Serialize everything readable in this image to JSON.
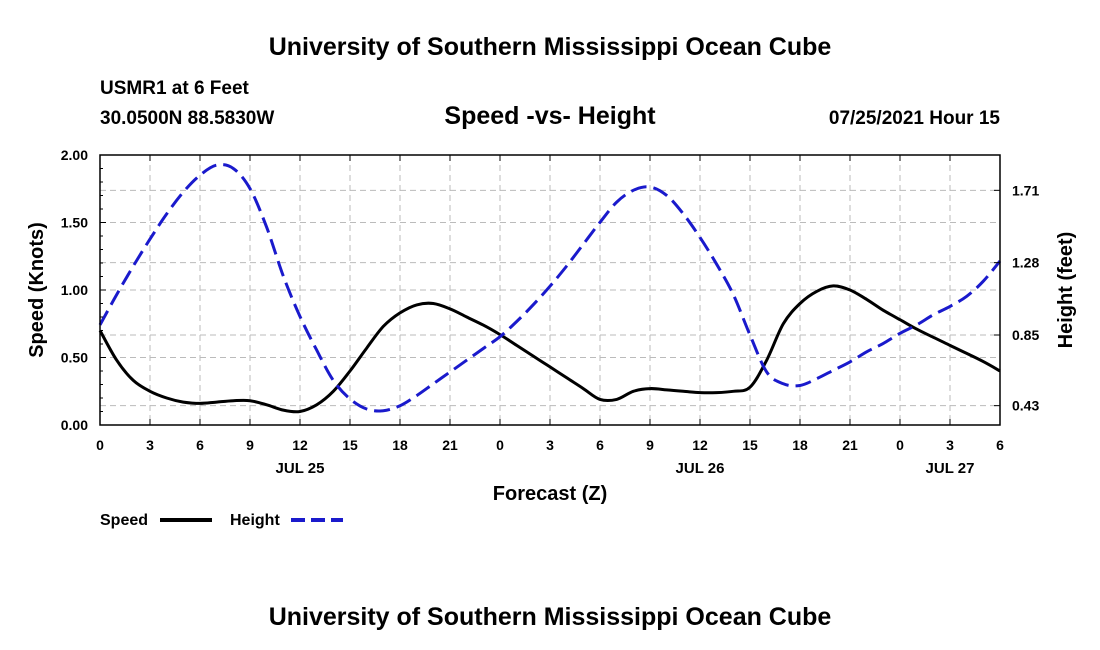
{
  "header": {
    "title": "University of Southern Mississippi Ocean Cube",
    "station": "USMR1 at 6 Feet",
    "coords": "30.0500N  88.5830W",
    "chart_title": "Speed -vs- Height",
    "date": "07/25/2021 Hour 15"
  },
  "footer": {
    "title": "University of Southern Mississippi Ocean Cube"
  },
  "legend": {
    "speed": "Speed",
    "height": "Height"
  },
  "colors": {
    "speed": "#000000",
    "height": "#1a1acc",
    "grid": "#bbbbbb"
  },
  "chart_data": {
    "type": "line",
    "title": "Speed -vs- Height",
    "xlabel": "Forecast (Z)",
    "ylabel_left": "Speed (Knots)",
    "ylabel_right": "Height (feet)",
    "x_range": [
      0,
      54
    ],
    "x_ticks": [
      {
        "x": 0,
        "label": "0"
      },
      {
        "x": 3,
        "label": "3"
      },
      {
        "x": 6,
        "label": "6"
      },
      {
        "x": 9,
        "label": "9"
      },
      {
        "x": 12,
        "label": "12"
      },
      {
        "x": 15,
        "label": "15"
      },
      {
        "x": 18,
        "label": "18"
      },
      {
        "x": 21,
        "label": "21"
      },
      {
        "x": 24,
        "label": "0"
      },
      {
        "x": 27,
        "label": "3"
      },
      {
        "x": 30,
        "label": "6"
      },
      {
        "x": 33,
        "label": "9"
      },
      {
        "x": 36,
        "label": "12"
      },
      {
        "x": 39,
        "label": "15"
      },
      {
        "x": 42,
        "label": "18"
      },
      {
        "x": 45,
        "label": "21"
      },
      {
        "x": 48,
        "label": "0"
      },
      {
        "x": 51,
        "label": "3"
      },
      {
        "x": 54,
        "label": "6"
      }
    ],
    "date_labels": [
      {
        "x": 12,
        "label": "JUL 25"
      },
      {
        "x": 36,
        "label": "JUL 26"
      },
      {
        "x": 51,
        "label": "JUL 27"
      }
    ],
    "y_left_range": [
      0,
      2
    ],
    "y_left_ticks": [
      "0.00",
      "0.50",
      "1.00",
      "1.50",
      "2.00"
    ],
    "y_right_range": [
      0.315,
      1.92
    ],
    "y_right_ticks": [
      "0.43",
      "0.85",
      "1.28",
      "1.71"
    ],
    "grid": true,
    "legend_position": "bottom-left",
    "series": [
      {
        "name": "Speed",
        "axis": "left",
        "style": "solid",
        "x": [
          0,
          1,
          2,
          3,
          4,
          5,
          6,
          7,
          8,
          9,
          10,
          11,
          12,
          13,
          14,
          15,
          16,
          17,
          18,
          19,
          20,
          21,
          22,
          23,
          24,
          25,
          26,
          27,
          28,
          29,
          30,
          31,
          32,
          33,
          34,
          35,
          36,
          37,
          38,
          39,
          40,
          41,
          42,
          43,
          44,
          45,
          46,
          47,
          48,
          49,
          50,
          51,
          52,
          53,
          54
        ],
        "values": [
          0.7,
          0.48,
          0.33,
          0.25,
          0.2,
          0.17,
          0.16,
          0.17,
          0.18,
          0.18,
          0.15,
          0.11,
          0.1,
          0.15,
          0.25,
          0.4,
          0.57,
          0.73,
          0.83,
          0.89,
          0.9,
          0.86,
          0.8,
          0.74,
          0.67,
          0.59,
          0.51,
          0.43,
          0.35,
          0.27,
          0.19,
          0.19,
          0.25,
          0.27,
          0.26,
          0.25,
          0.24,
          0.24,
          0.25,
          0.28,
          0.48,
          0.75,
          0.9,
          0.99,
          1.03,
          1.0,
          0.93,
          0.85,
          0.78,
          0.71,
          0.65,
          0.59,
          0.53,
          0.47,
          0.4
        ]
      },
      {
        "name": "Height",
        "axis": "right",
        "style": "dashed",
        "x": [
          0,
          1,
          2,
          3,
          4,
          5,
          6,
          7,
          8,
          9,
          10,
          11,
          12,
          13,
          14,
          15,
          16,
          17,
          18,
          19,
          20,
          21,
          22,
          23,
          24,
          25,
          26,
          27,
          28,
          29,
          30,
          31,
          32,
          33,
          34,
          35,
          36,
          37,
          38,
          39,
          40,
          41,
          42,
          43,
          44,
          45,
          46,
          47,
          48,
          49,
          50,
          51,
          52,
          53,
          54
        ],
        "values": [
          0.91,
          1.09,
          1.26,
          1.42,
          1.57,
          1.7,
          1.8,
          1.86,
          1.84,
          1.72,
          1.49,
          1.2,
          0.96,
          0.76,
          0.58,
          0.47,
          0.41,
          0.4,
          0.43,
          0.49,
          0.56,
          0.63,
          0.7,
          0.77,
          0.84,
          0.93,
          1.03,
          1.14,
          1.26,
          1.39,
          1.52,
          1.64,
          1.71,
          1.73,
          1.68,
          1.57,
          1.43,
          1.27,
          1.09,
          0.85,
          0.63,
          0.56,
          0.55,
          0.59,
          0.64,
          0.69,
          0.75,
          0.8,
          0.86,
          0.91,
          0.97,
          1.02,
          1.08,
          1.17,
          1.29
        ]
      }
    ]
  }
}
